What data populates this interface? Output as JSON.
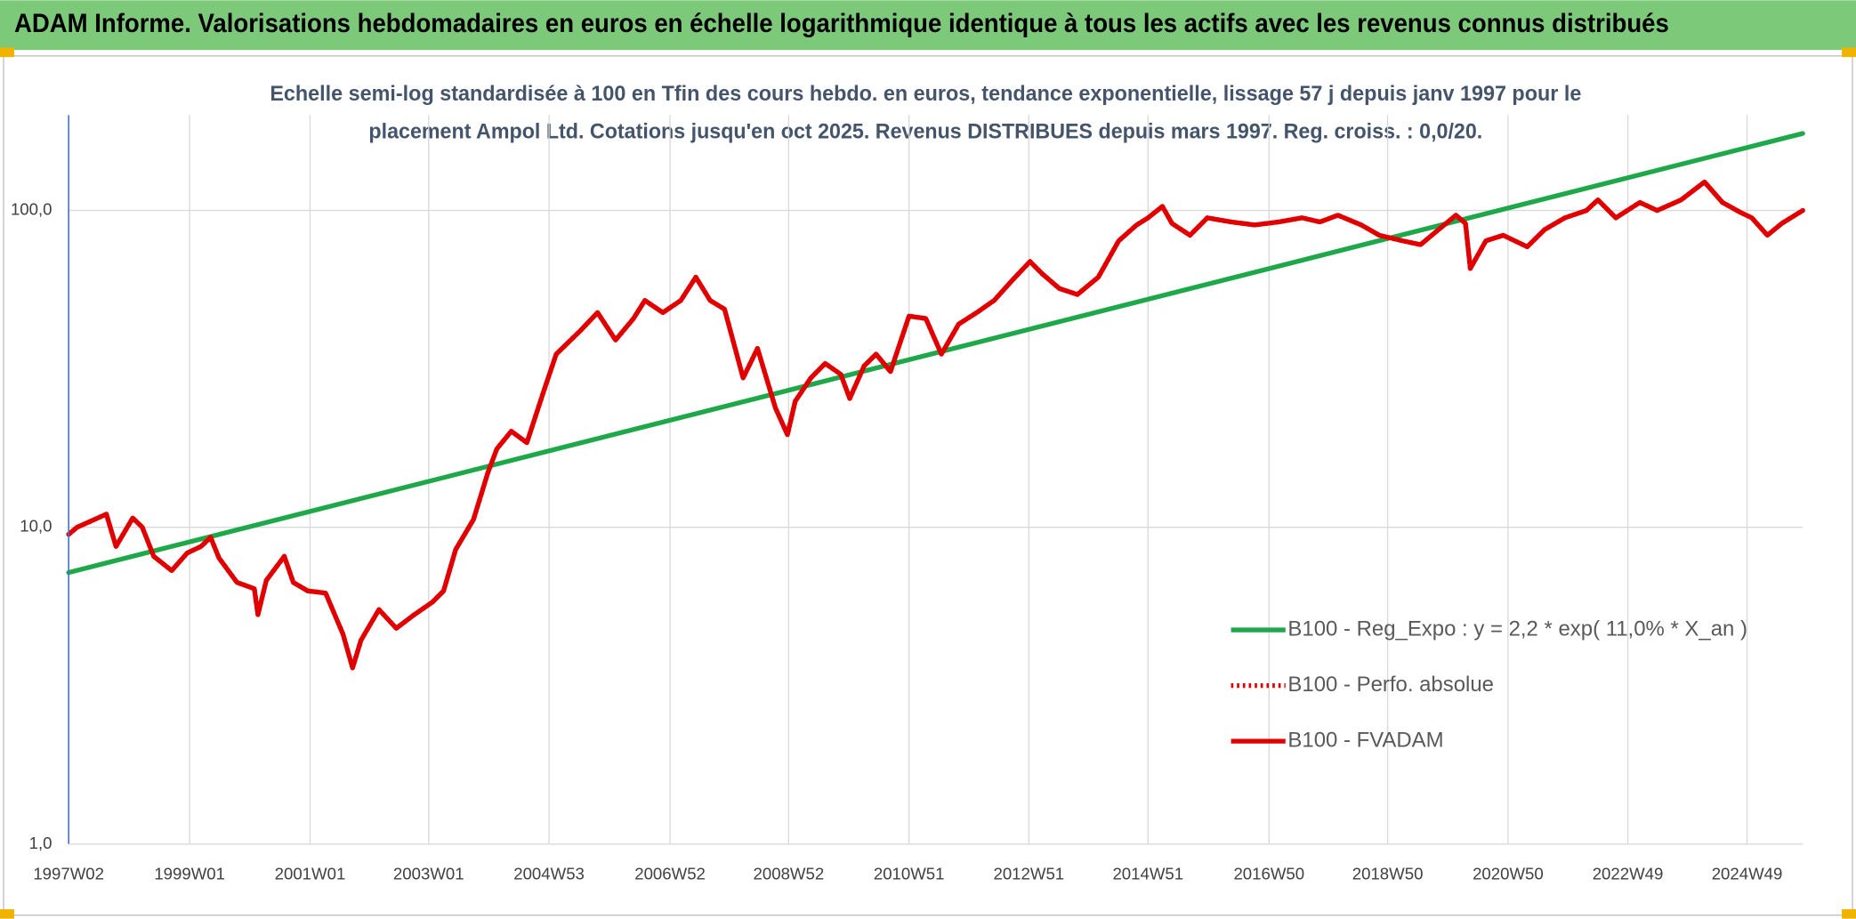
{
  "chart_data": {
    "type": "line",
    "title": "ADAM Informe. Valorisations hebdomadaires en euros en échelle logarithmique identique à tous les actifs avec les revenus connus distribués",
    "subtitle": [
      "Echelle semi-log standardisée à 100 en Tfin des cours hebdo. en euros, tendance exponentielle, lissage 57 j depuis janv 1997 pour le",
      "placement Ampol Ltd. Cotations jusqu'en oct 2025. Revenus DISTRIBUES depuis mars 1997. Reg. croiss. : 0,0/20."
    ],
    "log_scale": true,
    "grid": true,
    "legend": "right",
    "xlim": [
      1997.03,
      2025.98
    ],
    "xticks": [
      {
        "value": 1997.03,
        "label": "1997W02"
      },
      {
        "value": 1999.05,
        "label": "1999W01"
      },
      {
        "value": 2001.06,
        "label": "2001W01"
      },
      {
        "value": 2003.04,
        "label": "2003W01"
      },
      {
        "value": 2005.05,
        "label": "2004W53"
      },
      {
        "value": 2007.07,
        "label": "2006W52"
      },
      {
        "value": 2009.05,
        "label": "2008W52"
      },
      {
        "value": 2011.06,
        "label": "2010W51"
      },
      {
        "value": 2013.06,
        "label": "2012W51"
      },
      {
        "value": 2015.05,
        "label": "2014W51"
      },
      {
        "value": 2017.07,
        "label": "2016W50"
      },
      {
        "value": 2019.05,
        "label": "2018W50"
      },
      {
        "value": 2021.06,
        "label": "2020W50"
      },
      {
        "value": 2023.06,
        "label": "2022W49"
      },
      {
        "value": 2025.05,
        "label": "2024W49"
      }
    ],
    "ylim": [
      1,
      200
    ],
    "yticks": [
      {
        "value": 1,
        "label": "1,0"
      },
      {
        "value": 10,
        "label": "10,0"
      },
      {
        "value": 100,
        "label": "100,0"
      }
    ],
    "series": [
      {
        "name": "B100 - Reg_Expo : y = 2,2 * exp( 11,0% *  X_an )",
        "color": "#1fa84a",
        "line_style": "solid",
        "x": [
          1997.03,
          2025.98
        ],
        "values": [
          7.2,
          175
        ]
      },
      {
        "name": "B100 - Perfo. absolue",
        "color": "#e00000",
        "line_style": "dotted",
        "x": [
          1997.03,
          1997.17,
          1997.66,
          1997.82,
          1998.1,
          1998.26,
          1998.45,
          1998.75,
          1999.01,
          1999.24,
          1999.4,
          1999.54,
          1999.84,
          2000.13,
          2000.19,
          2000.33,
          2000.63,
          2000.78,
          2001.02,
          2001.32,
          2001.61,
          2001.77,
          2001.91,
          2002.21,
          2002.5,
          2002.8,
          2003.1,
          2003.29,
          2003.49,
          2003.79,
          2004.03,
          2004.18,
          2004.42,
          2004.68,
          2004.97,
          2005.17,
          2005.57,
          2005.86,
          2006.16,
          2006.46,
          2006.65,
          2006.95,
          2007.25,
          2007.5,
          2007.74,
          2007.98,
          2008.29,
          2008.53,
          2008.83,
          2009.03,
          2009.16,
          2009.42,
          2009.66,
          2009.92,
          2010.07,
          2010.31,
          2010.51,
          2010.75,
          2011.06,
          2011.34,
          2011.6,
          2011.89,
          2012.19,
          2012.48,
          2012.78,
          2013.08,
          2013.28,
          2013.57,
          2013.87,
          2014.22,
          2014.56,
          2014.86,
          2015.05,
          2015.29,
          2015.45,
          2015.75,
          2016.04,
          2016.44,
          2016.83,
          2017.23,
          2017.62,
          2017.92,
          2018.22,
          2018.61,
          2018.91,
          2019.3,
          2019.6,
          2019.9,
          2020.19,
          2020.35,
          2020.43,
          2020.69,
          2020.98,
          2021.38,
          2021.67,
          2022.01,
          2022.37,
          2022.56,
          2022.86,
          2023.26,
          2023.55,
          2023.95,
          2024.34,
          2024.64,
          2024.94,
          2025.13,
          2025.39,
          2025.63,
          2025.98
        ],
        "values": [
          9.5,
          10,
          11,
          8.7,
          10.7,
          10,
          8.1,
          7.3,
          8.3,
          8.7,
          9.3,
          8.0,
          6.7,
          6.4,
          5.3,
          6.8,
          8.1,
          6.7,
          6.3,
          6.2,
          4.6,
          3.6,
          4.4,
          5.5,
          4.8,
          5.3,
          5.8,
          6.3,
          8.5,
          10.6,
          14.9,
          17.7,
          20.1,
          18.5,
          27.2,
          35.2,
          41.7,
          47.6,
          39.0,
          45.6,
          52,
          47.6,
          52,
          61.6,
          52,
          48.8,
          29.6,
          36.7,
          23.8,
          19.6,
          25,
          29.6,
          32.9,
          30.4,
          25.5,
          32.3,
          35.2,
          31,
          46.4,
          45.6,
          35.2,
          43.8,
          47.6,
          52,
          60.1,
          69,
          63.2,
          56.7,
          54.3,
          61.6,
          80.2,
          90,
          94.8,
          103,
          91,
          83.5,
          94.8,
          92,
          90,
          92,
          94.8,
          92,
          96.6,
          90,
          83.5,
          80.2,
          78,
          87,
          96.6,
          91,
          65.6,
          80.2,
          83.5,
          76.8,
          87,
          94.8,
          100,
          108,
          94.8,
          106,
          100,
          108,
          123,
          106,
          98.6,
          94.8,
          83.5,
          91,
          100
        ]
      },
      {
        "name": "B100 - FVADAM",
        "color": "#e00000",
        "line_style": "solid",
        "x": [
          1997.03,
          1997.17,
          1997.66,
          1997.82,
          1998.1,
          1998.26,
          1998.45,
          1998.75,
          1999.01,
          1999.24,
          1999.4,
          1999.54,
          1999.84,
          2000.13,
          2000.19,
          2000.33,
          2000.63,
          2000.78,
          2001.02,
          2001.32,
          2001.61,
          2001.77,
          2001.91,
          2002.21,
          2002.5,
          2002.8,
          2003.1,
          2003.29,
          2003.49,
          2003.79,
          2004.03,
          2004.18,
          2004.42,
          2004.68,
          2004.97,
          2005.17,
          2005.57,
          2005.86,
          2006.16,
          2006.46,
          2006.65,
          2006.95,
          2007.25,
          2007.5,
          2007.74,
          2007.98,
          2008.29,
          2008.53,
          2008.83,
          2009.03,
          2009.16,
          2009.42,
          2009.66,
          2009.92,
          2010.07,
          2010.31,
          2010.51,
          2010.75,
          2011.06,
          2011.34,
          2011.6,
          2011.89,
          2012.19,
          2012.48,
          2012.78,
          2013.08,
          2013.28,
          2013.57,
          2013.87,
          2014.22,
          2014.56,
          2014.86,
          2015.05,
          2015.29,
          2015.45,
          2015.75,
          2016.04,
          2016.44,
          2016.83,
          2017.23,
          2017.62,
          2017.92,
          2018.22,
          2018.61,
          2018.91,
          2019.3,
          2019.6,
          2019.9,
          2020.19,
          2020.35,
          2020.43,
          2020.69,
          2020.98,
          2021.38,
          2021.67,
          2022.01,
          2022.37,
          2022.56,
          2022.86,
          2023.26,
          2023.55,
          2023.95,
          2024.34,
          2024.64,
          2024.94,
          2025.13,
          2025.39,
          2025.63,
          2025.98
        ],
        "values": [
          9.5,
          10,
          11,
          8.7,
          10.7,
          10,
          8.1,
          7.3,
          8.3,
          8.7,
          9.3,
          8.0,
          6.7,
          6.4,
          5.3,
          6.8,
          8.1,
          6.7,
          6.3,
          6.2,
          4.6,
          3.6,
          4.4,
          5.5,
          4.8,
          5.3,
          5.8,
          6.3,
          8.5,
          10.6,
          14.9,
          17.7,
          20.1,
          18.5,
          27.2,
          35.2,
          41.7,
          47.6,
          39.0,
          45.6,
          52,
          47.6,
          52,
          61.6,
          52,
          48.8,
          29.6,
          36.7,
          23.8,
          19.6,
          25,
          29.6,
          32.9,
          30.4,
          25.5,
          32.3,
          35.2,
          31,
          46.4,
          45.6,
          35.2,
          43.8,
          47.6,
          52,
          60.1,
          69,
          63.2,
          56.7,
          54.3,
          61.6,
          80.2,
          90,
          94.8,
          103,
          91,
          83.5,
          94.8,
          92,
          90,
          92,
          94.8,
          92,
          96.6,
          90,
          83.5,
          80.2,
          78,
          87,
          96.6,
          91,
          65.6,
          80.2,
          83.5,
          76.8,
          87,
          94.8,
          100,
          108,
          94.8,
          106,
          100,
          108,
          123,
          106,
          98.6,
          94.8,
          83.5,
          91,
          100
        ]
      }
    ]
  }
}
